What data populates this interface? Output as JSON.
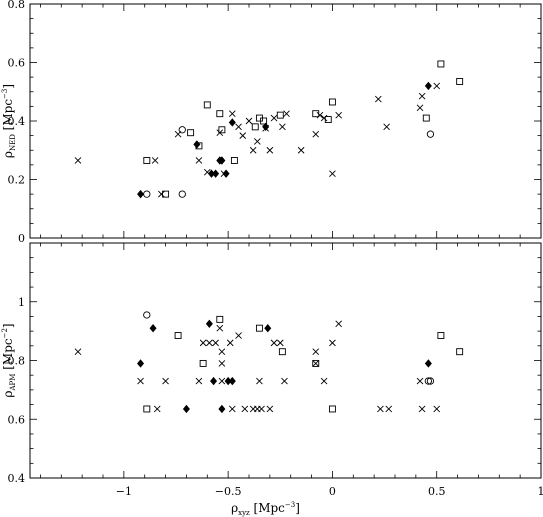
{
  "chart_data": [
    {
      "type": "scatter",
      "panel": "top",
      "ylabel": {
        "symbol": "ρ",
        "subscript": "NED",
        "unit_open": " [Mpc",
        "unit_sup": "−3",
        "unit_close": "]"
      },
      "xlim": [
        -1.45,
        1.0
      ],
      "ylim": [
        0,
        0.8
      ],
      "yticks": [
        0,
        0.2,
        0.4,
        0.6,
        0.8
      ],
      "ytick_labels": [
        "0",
        "0.2",
        "0.4",
        "0.6",
        "0.8"
      ],
      "show_xtick_labels": false,
      "series": [
        {
          "marker": "diamond-filled",
          "points": [
            [
              -0.92,
              0.15
            ],
            [
              -0.65,
              0.32
            ],
            [
              -0.58,
              0.22
            ],
            [
              -0.56,
              0.22
            ],
            [
              -0.54,
              0.265
            ],
            [
              -0.53,
              0.265
            ],
            [
              -0.51,
              0.22
            ],
            [
              -0.48,
              0.395
            ],
            [
              -0.32,
              0.38
            ],
            [
              0.46,
              0.52
            ]
          ]
        },
        {
          "marker": "open-circle",
          "points": [
            [
              -0.89,
              0.15
            ],
            [
              -0.72,
              0.15
            ],
            [
              -0.72,
              0.37
            ],
            [
              0.47,
              0.355
            ]
          ]
        },
        {
          "marker": "open-square",
          "points": [
            [
              -0.89,
              0.265
            ],
            [
              -0.8,
              0.15
            ],
            [
              -0.68,
              0.36
            ],
            [
              -0.64,
              0.315
            ],
            [
              -0.6,
              0.455
            ],
            [
              -0.54,
              0.425
            ],
            [
              -0.53,
              0.37
            ],
            [
              -0.47,
              0.265
            ],
            [
              -0.37,
              0.38
            ],
            [
              -0.35,
              0.41
            ],
            [
              -0.33,
              0.4
            ],
            [
              -0.25,
              0.42
            ],
            [
              -0.08,
              0.425
            ],
            [
              -0.02,
              0.405
            ],
            [
              0.0,
              0.465
            ],
            [
              0.45,
              0.41
            ],
            [
              0.52,
              0.595
            ],
            [
              0.61,
              0.535
            ]
          ]
        },
        {
          "marker": "cross",
          "points": [
            [
              -1.22,
              0.265
            ],
            [
              -0.85,
              0.265
            ],
            [
              -0.82,
              0.15
            ],
            [
              -0.74,
              0.355
            ],
            [
              -0.64,
              0.265
            ],
            [
              -0.6,
              0.225
            ],
            [
              -0.54,
              0.36
            ],
            [
              -0.52,
              0.22
            ],
            [
              -0.48,
              0.425
            ],
            [
              -0.45,
              0.38
            ],
            [
              -0.43,
              0.35
            ],
            [
              -0.4,
              0.4
            ],
            [
              -0.38,
              0.3
            ],
            [
              -0.36,
              0.33
            ],
            [
              -0.32,
              0.375
            ],
            [
              -0.3,
              0.3
            ],
            [
              -0.28,
              0.41
            ],
            [
              -0.24,
              0.38
            ],
            [
              -0.22,
              0.425
            ],
            [
              -0.15,
              0.3
            ],
            [
              -0.08,
              0.355
            ],
            [
              -0.06,
              0.42
            ],
            [
              -0.04,
              0.41
            ],
            [
              0.0,
              0.22
            ],
            [
              0.03,
              0.42
            ],
            [
              0.22,
              0.475
            ],
            [
              0.26,
              0.38
            ],
            [
              0.42,
              0.445
            ],
            [
              0.43,
              0.485
            ],
            [
              0.5,
              0.52
            ]
          ]
        }
      ]
    },
    {
      "type": "scatter",
      "panel": "bottom",
      "xlabel": {
        "symbol": "ρ",
        "subscript": "xyz",
        "unit_open": " [Mpc",
        "unit_sup": "−3",
        "unit_close": "]"
      },
      "ylabel": {
        "symbol": "ρ",
        "subscript": "APM",
        "unit_open": " [Mpc",
        "unit_sup": "−2",
        "unit_close": "]"
      },
      "xlim": [
        -1.45,
        1.0
      ],
      "ylim": [
        0.4,
        1.2
      ],
      "xticks": [
        -1,
        -0.5,
        0,
        0.5,
        1
      ],
      "xtick_labels": [
        "−1",
        "−0.5",
        "0",
        "0.5",
        "1"
      ],
      "yticks": [
        0.4,
        0.6,
        0.8,
        1.0
      ],
      "ytick_labels": [
        "0.4",
        "0.6",
        "0.8",
        "1"
      ],
      "series": [
        {
          "marker": "diamond-filled",
          "points": [
            [
              -0.92,
              0.79
            ],
            [
              -0.86,
              0.91
            ],
            [
              -0.7,
              0.635
            ],
            [
              -0.59,
              0.925
            ],
            [
              -0.57,
              0.73
            ],
            [
              -0.53,
              0.635
            ],
            [
              -0.5,
              0.73
            ],
            [
              -0.48,
              0.73
            ],
            [
              -0.31,
              0.91
            ],
            [
              0.46,
              0.79
            ]
          ]
        },
        {
          "marker": "open-circle",
          "points": [
            [
              -0.89,
              0.955
            ],
            [
              0.46,
              0.73
            ],
            [
              0.47,
              0.73
            ]
          ]
        },
        {
          "marker": "open-square",
          "points": [
            [
              -0.89,
              0.635
            ],
            [
              -0.74,
              0.885
            ],
            [
              -0.62,
              0.79
            ],
            [
              -0.54,
              0.94
            ],
            [
              -0.35,
              0.91
            ],
            [
              -0.24,
              0.83
            ],
            [
              -0.08,
              0.79
            ],
            [
              0.0,
              0.635
            ],
            [
              0.52,
              0.885
            ],
            [
              0.61,
              0.83
            ]
          ]
        },
        {
          "marker": "cross",
          "points": [
            [
              -1.22,
              0.83
            ],
            [
              -0.92,
              0.73
            ],
            [
              -0.84,
              0.635
            ],
            [
              -0.8,
              0.73
            ],
            [
              -0.64,
              0.73
            ],
            [
              -0.62,
              0.86
            ],
            [
              -0.59,
              0.86
            ],
            [
              -0.56,
              0.86
            ],
            [
              -0.54,
              0.91
            ],
            [
              -0.53,
              0.83
            ],
            [
              -0.53,
              0.79
            ],
            [
              -0.53,
              0.73
            ],
            [
              -0.49,
              0.86
            ],
            [
              -0.48,
              0.635
            ],
            [
              -0.45,
              0.885
            ],
            [
              -0.42,
              0.635
            ],
            [
              -0.38,
              0.635
            ],
            [
              -0.36,
              0.635
            ],
            [
              -0.35,
              0.73
            ],
            [
              -0.34,
              0.635
            ],
            [
              -0.3,
              0.635
            ],
            [
              -0.28,
              0.86
            ],
            [
              -0.25,
              0.86
            ],
            [
              -0.23,
              0.73
            ],
            [
              -0.08,
              0.83
            ],
            [
              -0.08,
              0.79
            ],
            [
              -0.04,
              0.73
            ],
            [
              0.0,
              0.86
            ],
            [
              0.03,
              0.925
            ],
            [
              0.23,
              0.635
            ],
            [
              0.27,
              0.635
            ],
            [
              0.42,
              0.73
            ],
            [
              0.43,
              0.635
            ],
            [
              0.5,
              0.635
            ]
          ]
        }
      ]
    }
  ]
}
